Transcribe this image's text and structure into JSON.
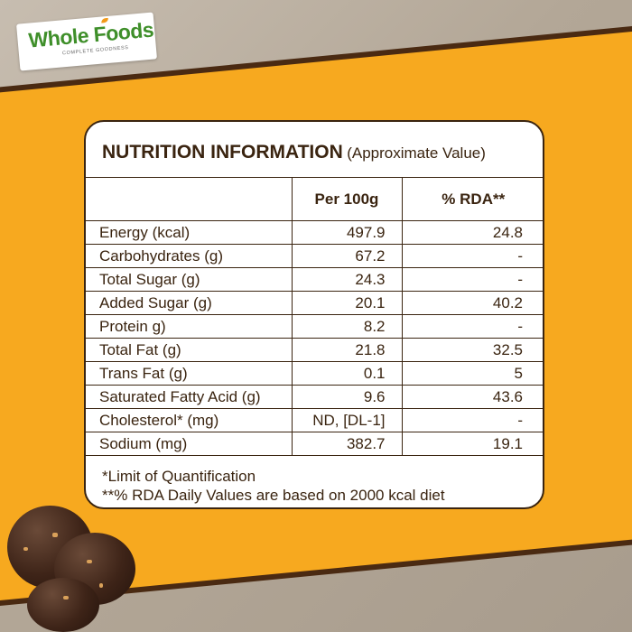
{
  "brand": {
    "name": "Whole Foods",
    "tagline": "COMPLETE GOODNESS",
    "colors": {
      "green": "#3f8f2a",
      "orange": "#f7a91f",
      "brown": "#3a2410"
    }
  },
  "nutrition": {
    "title": "NUTRITION INFORMATION",
    "subtitle": "(Approximate Value)",
    "columns": [
      "",
      "Per 100g",
      "% RDA**"
    ],
    "rows": [
      {
        "name": "Energy (kcal)",
        "per100g": "497.9",
        "rda": "24.8"
      },
      {
        "name": "Carbohydrates (g)",
        "per100g": "67.2",
        "rda": "-"
      },
      {
        "name": "Total Sugar (g)",
        "per100g": "24.3",
        "rda": "-"
      },
      {
        "name": "Added Sugar (g)",
        "per100g": "20.1",
        "rda": "40.2"
      },
      {
        "name": "Protein g)",
        "per100g": "8.2",
        "rda": "-"
      },
      {
        "name": "Total Fat (g)",
        "per100g": "21.8",
        "rda": "32.5"
      },
      {
        "name": "Trans Fat (g)",
        "per100g": "0.1",
        "rda": "5"
      },
      {
        "name": "Saturated Fatty Acid (g)",
        "per100g": "9.6",
        "rda": "43.6"
      },
      {
        "name": "Cholesterol* (mg)",
        "per100g": "ND, [DL-1]",
        "rda": "-"
      },
      {
        "name": "Sodium (mg)",
        "per100g": "382.7",
        "rda": "19.1"
      }
    ],
    "footnotes": [
      "*Limit of Quantification",
      "**% RDA Daily Values are based on 2000 kcal diet"
    ]
  }
}
